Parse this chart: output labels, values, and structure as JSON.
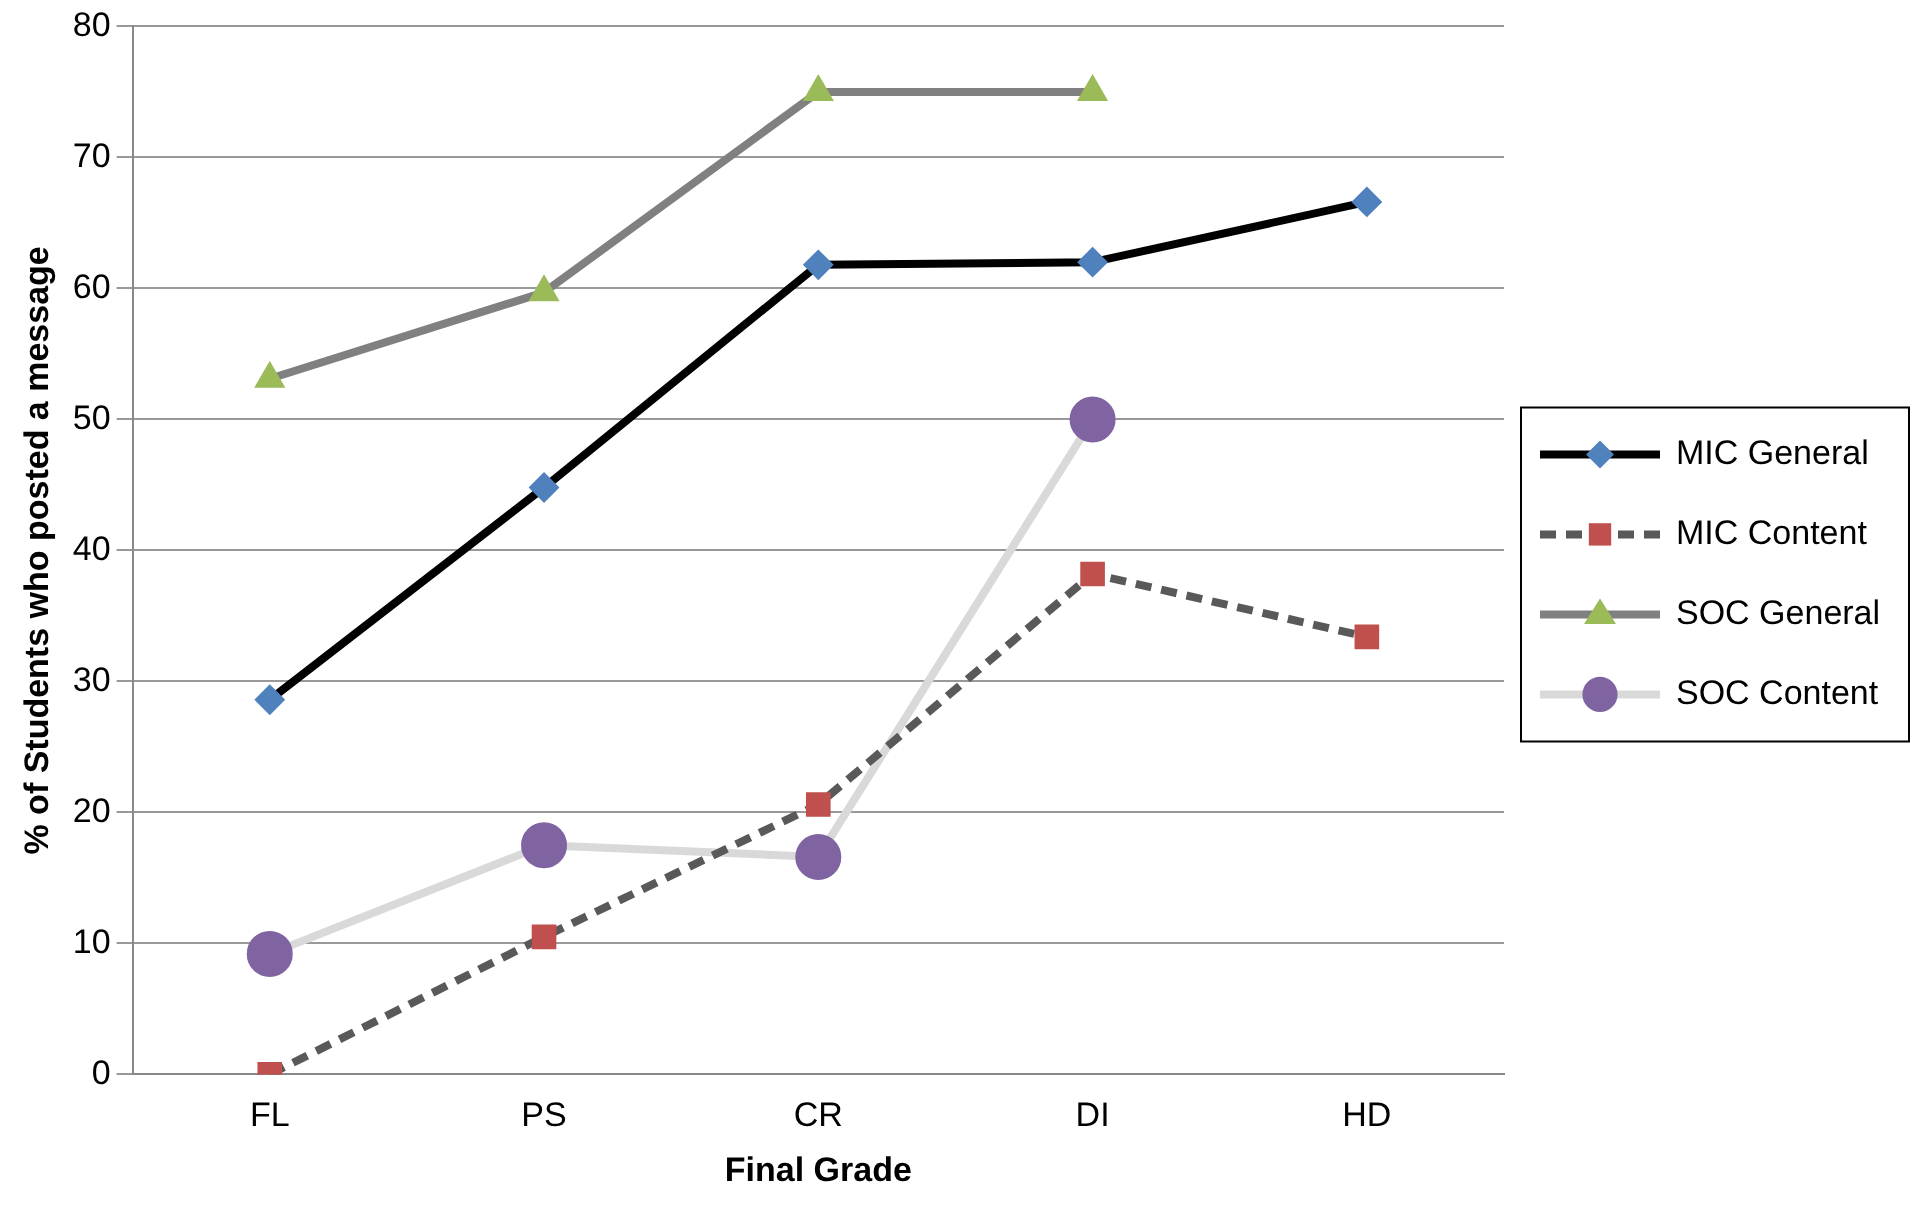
{
  "chart_data": {
    "type": "line",
    "xlabel": "Final Grade",
    "ylabel": "% of Students who posted a message",
    "categories": [
      "FL",
      "PS",
      "CR",
      "DI",
      "HD"
    ],
    "ylim": [
      0,
      80
    ],
    "yticks": [
      0,
      10,
      20,
      30,
      40,
      50,
      60,
      70,
      80
    ],
    "grid": "y",
    "legend": "right",
    "series": [
      {
        "name": "MIC General",
        "color": "#000000",
        "colors": [
          "#4f81bd",
          "#4f81bd",
          "#4f81bd",
          "#4f81bd",
          "#4f81bd"
        ],
        "marker": "diamond",
        "line_style": "solid",
        "values": [
          28.6,
          44.8,
          61.8,
          62,
          66.6
        ]
      },
      {
        "name": "MIC Content",
        "color": "#595959",
        "colors": [
          "#c0504d",
          "#c0504d",
          "#c0504d",
          "#c0504d",
          "#c0504d"
        ],
        "marker": "square",
        "line_style": "dashed",
        "values": [
          0,
          10.5,
          20.6,
          38.2,
          33.4
        ]
      },
      {
        "name": "SOC General",
        "color": "#808080",
        "colors": [
          "#9bbb59",
          "#9bbb59",
          "#9bbb59",
          "#9bbb59",
          "#9bbb59"
        ],
        "marker": "triangle",
        "line_style": "solid",
        "values": [
          53.1,
          59.7,
          75,
          75,
          null
        ]
      },
      {
        "name": "SOC Content",
        "color": "#d9d9d9",
        "colors": [
          "#8064a2",
          "#8064a2",
          "#8064a2",
          "#8064a2",
          "#8064a2"
        ],
        "marker": "circle",
        "line_style": "solid",
        "values": [
          9.2,
          17.5,
          16.6,
          50,
          null
        ]
      }
    ]
  }
}
